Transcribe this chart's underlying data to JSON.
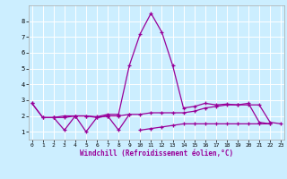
{
  "xlabel": "Windchill (Refroidissement éolien,°C)",
  "bg_color": "#cceeff",
  "grid_color": "#ffffff",
  "line_color": "#990099",
  "x_values": [
    0,
    1,
    2,
    3,
    4,
    5,
    6,
    7,
    8,
    9,
    10,
    11,
    12,
    13,
    14,
    15,
    16,
    17,
    18,
    19,
    20,
    21,
    22,
    23
  ],
  "line1_y": [
    2.8,
    1.9,
    1.9,
    2.0,
    2.0,
    2.0,
    1.95,
    2.1,
    2.1,
    5.2,
    7.2,
    8.5,
    7.3,
    5.2,
    2.5,
    2.6,
    2.8,
    2.7,
    2.75,
    2.7,
    2.8,
    1.6,
    1.5,
    null
  ],
  "line_zigzag_x": [
    0,
    1,
    2,
    3,
    4,
    5,
    6,
    7,
    8,
    9
  ],
  "line_zigzag_y": [
    2.8,
    1.9,
    1.9,
    1.1,
    2.0,
    1.0,
    1.9,
    2.0,
    1.1,
    2.1
  ],
  "line3_x": [
    2,
    3,
    4,
    5,
    6,
    7,
    8,
    9,
    10,
    11,
    12,
    13,
    14,
    15,
    16,
    17,
    18,
    19,
    20,
    21,
    22,
    23
  ],
  "line3_y": [
    1.9,
    1.9,
    2.0,
    2.0,
    1.9,
    2.0,
    2.0,
    2.1,
    2.1,
    2.2,
    2.2,
    2.2,
    2.2,
    2.3,
    2.5,
    2.6,
    2.7,
    2.7,
    2.7,
    2.7,
    1.6,
    1.5
  ],
  "line4_x": [
    10,
    11,
    12,
    13,
    14,
    15,
    16,
    17,
    18,
    19,
    20,
    21,
    22
  ],
  "line4_y": [
    1.1,
    1.2,
    1.3,
    1.4,
    1.5,
    1.5,
    1.5,
    1.5,
    1.5,
    1.5,
    1.5,
    1.5,
    1.5
  ],
  "ylim": [
    0.5,
    9.0
  ],
  "xlim": [
    -0.3,
    23.3
  ],
  "yticks": [
    1,
    2,
    3,
    4,
    5,
    6,
    7,
    8
  ],
  "xticks": [
    0,
    1,
    2,
    3,
    4,
    5,
    6,
    7,
    8,
    9,
    10,
    11,
    12,
    13,
    14,
    15,
    16,
    17,
    18,
    19,
    20,
    21,
    22,
    23
  ]
}
